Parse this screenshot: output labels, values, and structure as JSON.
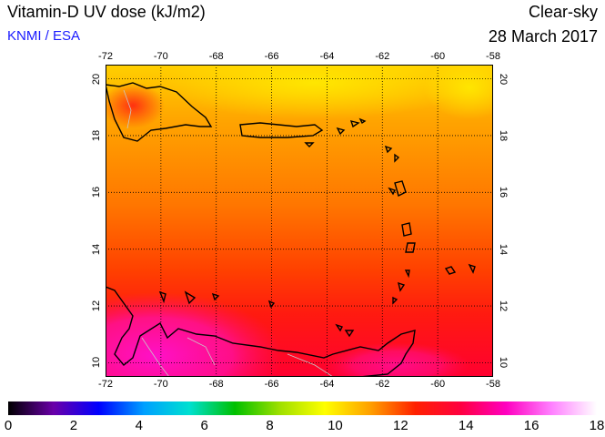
{
  "header": {
    "title": "Vitamin-D UV dose (kJ/m2)",
    "credit": "KNMI / ESA",
    "mode": "Clear-sky",
    "date": "28 March 2017"
  },
  "map": {
    "lon_ticks": [
      "-72",
      "-70",
      "-68",
      "-66",
      "-64",
      "-62",
      "-60",
      "-58"
    ],
    "lat_ticks": [
      "20",
      "18",
      "16",
      "14",
      "12",
      "10"
    ],
    "lon_range": [
      -72,
      -58
    ],
    "lat_range": [
      9.5,
      20.5
    ],
    "grid": true
  },
  "colorbar": {
    "labels": [
      "0",
      "2",
      "4",
      "6",
      "8",
      "10",
      "12",
      "14",
      "16",
      "18"
    ],
    "range": [
      0,
      18
    ],
    "colors": [
      "#000000",
      "#6a00a8",
      "#0000ff",
      "#00a0ff",
      "#00e0d0",
      "#00c000",
      "#a0e000",
      "#ffff00",
      "#ffa000",
      "#ff2000",
      "#ff0040",
      "#ff00c0",
      "#ff80ff",
      "#ffffff"
    ]
  }
}
